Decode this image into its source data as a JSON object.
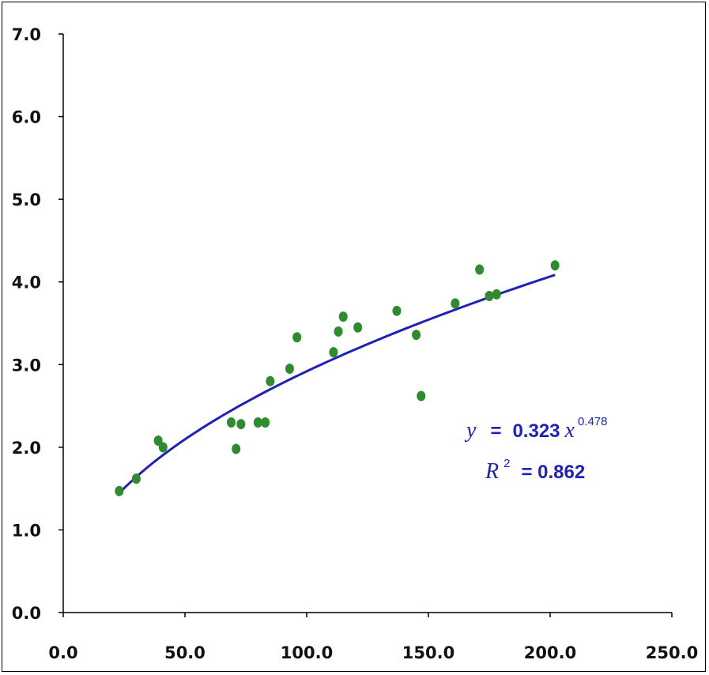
{
  "chart_data": {
    "type": "scatter",
    "title": "",
    "xlabel": "",
    "ylabel": "",
    "xlim": [
      0,
      250
    ],
    "ylim": [
      0,
      7
    ],
    "x_ticks": [
      "0.0",
      "50.0",
      "100.0",
      "150.0",
      "200.0",
      "250.0"
    ],
    "y_ticks": [
      "0.0",
      "1.0",
      "2.0",
      "3.0",
      "4.0",
      "5.0",
      "6.0",
      "7.0"
    ],
    "grid": false,
    "series": [
      {
        "type": "scatter",
        "color": "#2e8b2e",
        "points": [
          [
            23,
            1.47
          ],
          [
            30,
            1.62
          ],
          [
            39,
            2.08
          ],
          [
            41,
            2.0
          ],
          [
            69,
            2.3
          ],
          [
            71,
            1.98
          ],
          [
            73,
            2.28
          ],
          [
            80,
            2.3
          ],
          [
            83,
            2.3
          ],
          [
            85,
            2.8
          ],
          [
            93,
            2.95
          ],
          [
            96,
            3.33
          ],
          [
            111,
            3.15
          ],
          [
            113,
            3.4
          ],
          [
            115,
            3.58
          ],
          [
            121,
            3.45
          ],
          [
            137,
            3.65
          ],
          [
            145,
            3.36
          ],
          [
            147,
            2.62
          ],
          [
            161,
            3.74
          ],
          [
            171,
            4.15
          ],
          [
            175,
            3.83
          ],
          [
            178,
            3.85
          ],
          [
            202,
            4.2
          ]
        ]
      },
      {
        "type": "power-fit",
        "color": "#1f1fbf",
        "coefficient": 0.323,
        "exponent": 0.478,
        "x_range": [
          23,
          202
        ]
      }
    ],
    "annotation": {
      "y_symbol": "y",
      "equals": "=",
      "coefficient_text": "0.323",
      "x_symbol": "x",
      "exponent_text": "0.478",
      "r_symbol": "R",
      "r_exp": "2",
      "r2_text": "= 0.862"
    }
  }
}
